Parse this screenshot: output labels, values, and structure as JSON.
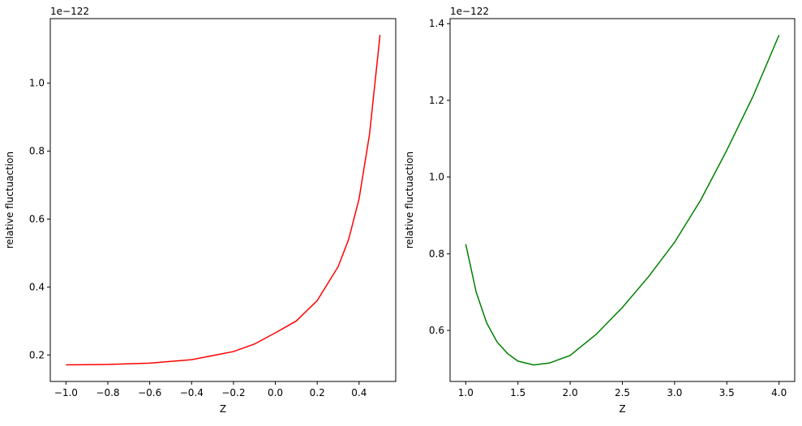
{
  "chart_data": [
    {
      "type": "line",
      "xlabel": "Z",
      "ylabel": "relative fluctuaction",
      "offset_text": "1e−122",
      "x": [
        -1.0,
        -0.8,
        -0.6,
        -0.4,
        -0.2,
        -0.1,
        0.0,
        0.1,
        0.2,
        0.3,
        0.35,
        0.4,
        0.45,
        0.5
      ],
      "series": [
        {
          "name": "relative fluctuaction",
          "color": "#ff0000",
          "values": [
            0.171,
            0.172,
            0.176,
            0.186,
            0.21,
            0.232,
            0.265,
            0.3,
            0.36,
            0.46,
            0.54,
            0.66,
            0.85,
            1.142
          ]
        }
      ],
      "xlim": [
        -1.075,
        0.575
      ],
      "xticks": [
        {
          "value": -1.0,
          "label": "−1.0"
        },
        {
          "value": -0.8,
          "label": "−0.8"
        },
        {
          "value": -0.6,
          "label": "−0.6"
        },
        {
          "value": -0.4,
          "label": "−0.4"
        },
        {
          "value": -0.2,
          "label": "−0.2"
        },
        {
          "value": 0,
          "label": "0.0"
        },
        0.2,
        0.4
      ],
      "ylim": [
        0.122,
        1.19
      ],
      "yticks": [
        0.2,
        0.4,
        0.6,
        0.8,
        {
          "value": 1,
          "label": "1.0"
        }
      ]
    },
    {
      "type": "line",
      "xlabel": "Z",
      "ylabel": "relative fluctuaction",
      "offset_text": "1e−122",
      "x": [
        1.0,
        1.1,
        1.2,
        1.3,
        1.4,
        1.5,
        1.65,
        1.8,
        2.0,
        2.25,
        2.5,
        2.75,
        3.0,
        3.25,
        3.5,
        3.75,
        4.0
      ],
      "series": [
        {
          "name": "relative fluctuaction",
          "color": "#008000",
          "values": [
            0.825,
            0.7,
            0.62,
            0.57,
            0.54,
            0.52,
            0.51,
            0.515,
            0.535,
            0.59,
            0.66,
            0.74,
            0.83,
            0.94,
            1.07,
            1.21,
            1.37
          ]
        }
      ],
      "xlim": [
        0.85,
        4.15
      ],
      "xticks": [
        {
          "value": 1,
          "label": "1.0"
        },
        1.5,
        {
          "value": 2,
          "label": "2.0"
        },
        2.5,
        {
          "value": 3,
          "label": "3.0"
        },
        3.5,
        {
          "value": 4,
          "label": "4.0"
        }
      ],
      "ylim": [
        0.467,
        1.413
      ],
      "yticks": [
        0.6,
        0.8,
        {
          "value": 1,
          "label": "1.0"
        },
        1.2,
        1.4
      ]
    }
  ]
}
